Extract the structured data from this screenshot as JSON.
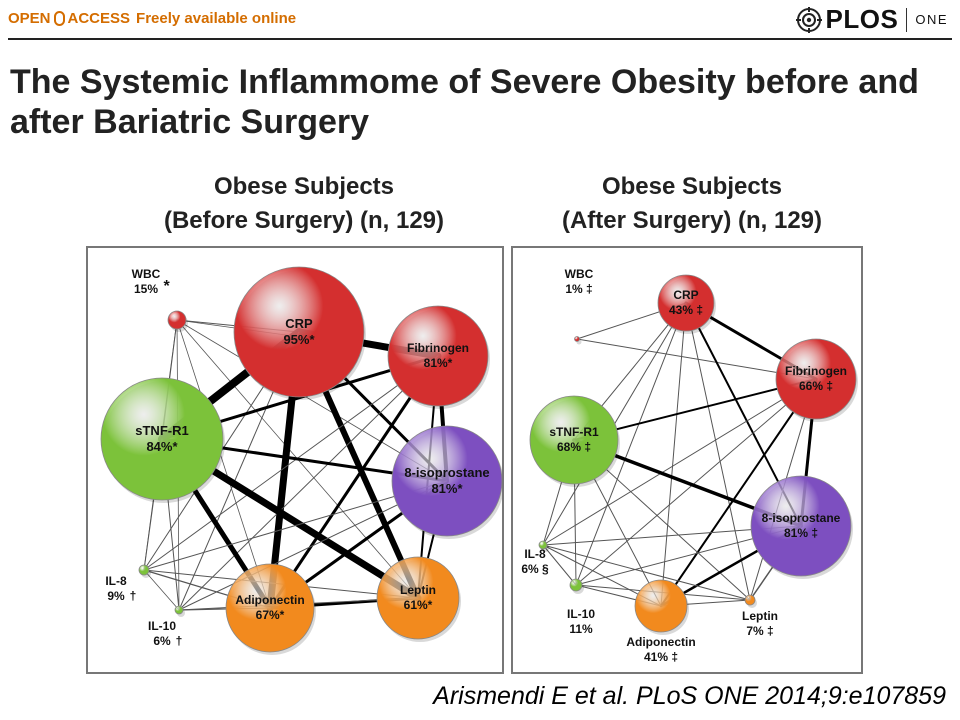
{
  "header": {
    "open": "OPEN",
    "access": "ACCESS",
    "freely": "Freely available online",
    "plos": "PLOS",
    "one": "ONE"
  },
  "title_line1": "The Systemic Inflammome of Severe Obesity before and",
  "title_line2": "after Bariatric Surgery",
  "panels": [
    {
      "title_line1": "Obese Subjects",
      "title_line2": "(Before Surgery) (n, 129)",
      "nodes": [
        {
          "id": "wbc",
          "name": "WBC",
          "value": "15%",
          "mark": "*"
        },
        {
          "id": "crp",
          "name": "CRP",
          "value": "95%*"
        },
        {
          "id": "fib",
          "name": "Fibrinogen",
          "value": "81%*"
        },
        {
          "id": "stnf",
          "name": "sTNF-R1",
          "value": "84%*"
        },
        {
          "id": "iso",
          "name": "8-isoprostane",
          "value": "81%*"
        },
        {
          "id": "il8",
          "name": "IL-8",
          "value": "9%",
          "mark": "†"
        },
        {
          "id": "il10",
          "name": "IL-10",
          "value": "6%",
          "mark": "†"
        },
        {
          "id": "adipo",
          "name": "Adiponectin",
          "value": "67%*"
        },
        {
          "id": "leptin",
          "name": "Leptin",
          "value": "61%*"
        }
      ]
    },
    {
      "title_line1": "Obese Subjects",
      "title_line2": "(After Surgery) (n, 129)",
      "nodes": [
        {
          "id": "wbc",
          "name": "WBC",
          "value": "1% ‡"
        },
        {
          "id": "crp",
          "name": "CRP",
          "value": "43% ‡"
        },
        {
          "id": "fib",
          "name": "Fibrinogen",
          "value": "66% ‡"
        },
        {
          "id": "stnf",
          "name": "sTNF-R1",
          "value": "68% ‡"
        },
        {
          "id": "iso",
          "name": "8-isoprostane",
          "value": "81% ‡"
        },
        {
          "id": "il8",
          "name": "IL-8",
          "value": "6% §"
        },
        {
          "id": "il10",
          "name": "IL-10",
          "value": "11%"
        },
        {
          "id": "adipo",
          "name": "Adiponectin",
          "value": "41% ‡"
        },
        {
          "id": "leptin",
          "name": "Leptin",
          "value": "7% ‡"
        }
      ]
    }
  ],
  "citation": "Arismendi E et al. PLoS ONE 2014;9:e107859",
  "colors": {
    "red": "#d42f2f",
    "green": "#7cc23a",
    "purple": "#7d4fc0",
    "orange": "#f28a1e",
    "open_access": "#d46d00"
  }
}
